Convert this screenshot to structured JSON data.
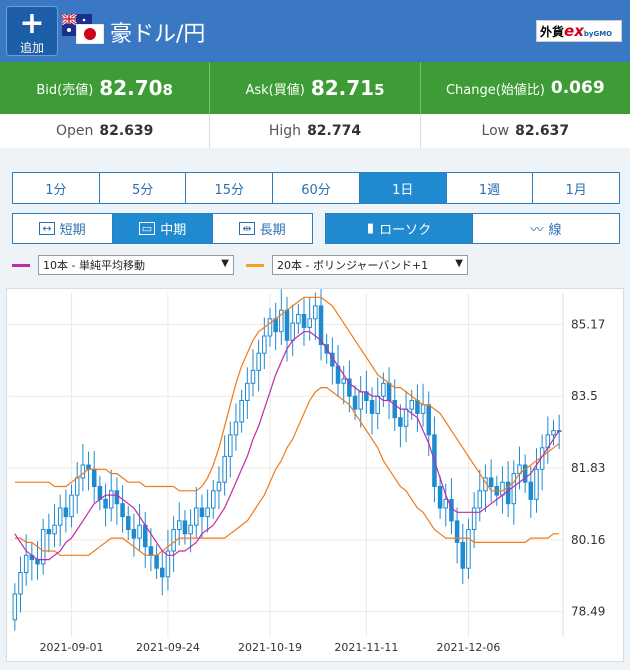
{
  "header": {
    "add_label": "追加",
    "title": "豪ドル/円",
    "logo_main": "外貨",
    "logo_ex": "ex",
    "logo_sub": "byGMO"
  },
  "rates": {
    "bid_label": "Bid(売値)",
    "bid_main": "82.70",
    "bid_pip": "8",
    "ask_label": "Ask(買値)",
    "ask_main": "82.71",
    "ask_pip": "5",
    "change_label": "Change(始値比)",
    "change_value": "0.069"
  },
  "ohl": {
    "open_label": "Open",
    "open_value": "82.639",
    "high_label": "High",
    "high_value": "82.774",
    "low_label": "Low",
    "low_value": "82.637"
  },
  "periods": [
    "1分",
    "5分",
    "15分",
    "60分",
    "1日",
    "1週",
    "1月"
  ],
  "active_period": "1日",
  "terms": [
    {
      "icon": "↔",
      "label": "短期"
    },
    {
      "icon": "▭",
      "label": "中期"
    },
    {
      "icon": "⇹",
      "label": "長期"
    }
  ],
  "chart_types": [
    {
      "icon": "▮",
      "label": "ローソク"
    },
    {
      "icon": "〰",
      "label": "線"
    }
  ],
  "indicators": {
    "ma_option": "10本 - 単純平均移動",
    "ma_color": "#c02aa8",
    "bb_option": "20本 - ボリンジャーバンド+1",
    "bb_color": "#f5a21b"
  },
  "chart_data": {
    "type": "candlestick",
    "y_ticks": [
      "85.17",
      "83.5",
      "81.83",
      "80.16",
      "78.49"
    ],
    "ylim": [
      77.9,
      85.9
    ],
    "x_ticks": [
      "2021-09-01",
      "2021-09-24",
      "2021-10-19",
      "2021-11-11",
      "2021-12-06"
    ],
    "x_tick_index": [
      10,
      27,
      45,
      62,
      80
    ],
    "candle_color": "#1f8ad0",
    "ma_color": "#c02aa8",
    "band_color": "#f07a1a",
    "closes": [
      78.9,
      79.4,
      79.8,
      79.7,
      79.6,
      80.4,
      80.3,
      80.5,
      80.9,
      80.7,
      81.2,
      81.6,
      81.9,
      81.8,
      81.4,
      81.1,
      80.9,
      81.3,
      81.0,
      80.7,
      80.4,
      80.2,
      80.5,
      80.0,
      79.8,
      79.5,
      79.3,
      79.9,
      80.4,
      80.6,
      80.3,
      80.5,
      80.9,
      80.7,
      80.9,
      81.3,
      81.5,
      82.1,
      82.6,
      82.9,
      83.4,
      83.8,
      84.1,
      84.5,
      84.9,
      85.3,
      85.0,
      85.5,
      84.8,
      85.2,
      85.4,
      85.1,
      85.3,
      85.6,
      84.7,
      84.5,
      84.2,
      83.8,
      83.9,
      83.5,
      83.2,
      83.6,
      83.4,
      83.1,
      83.5,
      83.8,
      83.4,
      83.0,
      82.8,
      83.2,
      83.4,
      83.1,
      83.3,
      82.6,
      81.4,
      80.9,
      81.1,
      80.6,
      80.1,
      79.5,
      80.4,
      80.9,
      81.3,
      81.6,
      81.4,
      81.2,
      81.5,
      81.0,
      81.7,
      81.9,
      81.5,
      81.1,
      81.8,
      82.3,
      82.6,
      82.7,
      82.7
    ],
    "ma10": [
      80.3,
      80.1,
      79.9,
      79.8,
      79.7,
      79.7,
      79.7,
      79.8,
      79.9,
      80.1,
      80.2,
      80.4,
      80.6,
      80.8,
      81.0,
      81.1,
      81.2,
      81.2,
      81.2,
      81.1,
      81.0,
      80.9,
      80.7,
      80.5,
      80.3,
      80.1,
      79.9,
      79.8,
      79.8,
      79.9,
      79.9,
      80.0,
      80.1,
      80.3,
      80.4,
      80.5,
      80.7,
      80.9,
      81.2,
      81.5,
      81.8,
      82.1,
      82.5,
      82.8,
      83.2,
      83.6,
      84.0,
      84.3,
      84.6,
      84.8,
      84.9,
      85.0,
      85.0,
      84.9,
      84.8,
      84.6,
      84.4,
      84.2,
      84.0,
      83.8,
      83.7,
      83.6,
      83.6,
      83.5,
      83.5,
      83.4,
      83.4,
      83.3,
      83.2,
      83.2,
      83.1,
      83.0,
      82.7,
      82.4,
      82.0,
      81.6,
      81.2,
      80.9,
      80.8,
      80.8,
      80.8,
      80.8,
      80.8,
      80.9,
      81.0,
      81.1,
      81.2,
      81.3,
      81.4,
      81.5,
      81.6,
      81.7,
      81.9,
      82.1,
      82.3,
      82.5,
      82.7
    ],
    "bb_upper": [
      81.5,
      81.5,
      81.5,
      81.5,
      81.5,
      81.5,
      81.5,
      81.4,
      81.4,
      81.4,
      81.5,
      81.6,
      81.7,
      81.8,
      81.8,
      81.8,
      81.8,
      81.7,
      81.7,
      81.6,
      81.5,
      81.5,
      81.5,
      81.4,
      81.4,
      81.4,
      81.4,
      81.4,
      81.4,
      81.3,
      81.3,
      81.3,
      81.3,
      81.4,
      81.6,
      81.9,
      82.3,
      82.8,
      83.3,
      83.8,
      84.2,
      84.5,
      84.8,
      85.0,
      85.1,
      85.2,
      85.3,
      85.4,
      85.5,
      85.6,
      85.7,
      85.8,
      85.8,
      85.8,
      85.8,
      85.7,
      85.6,
      85.4,
      85.2,
      85.0,
      84.8,
      84.6,
      84.4,
      84.2,
      84.0,
      83.9,
      83.8,
      83.7,
      83.7,
      83.6,
      83.5,
      83.4,
      83.3,
      83.3,
      83.2,
      83.1,
      82.9,
      82.7,
      82.5,
      82.3,
      82.1,
      81.9,
      81.7,
      81.5,
      81.3,
      81.3,
      81.3,
      81.4,
      81.5,
      81.7,
      81.8,
      81.9,
      82.0,
      82.1,
      82.2,
      82.3,
      82.4
    ],
    "bb_lower": [
      80.2,
      80.2,
      80.1,
      80.1,
      80.0,
      79.9,
      79.9,
      79.9,
      79.8,
      79.8,
      79.8,
      79.8,
      79.8,
      79.8,
      79.9,
      80.0,
      80.1,
      80.2,
      80.2,
      80.2,
      80.1,
      80.0,
      79.9,
      79.8,
      79.8,
      79.8,
      79.9,
      80.0,
      80.1,
      80.2,
      80.2,
      80.2,
      80.2,
      80.2,
      80.2,
      80.2,
      80.2,
      80.2,
      80.3,
      80.4,
      80.5,
      80.6,
      80.8,
      81.0,
      81.2,
      81.5,
      81.8,
      82.0,
      82.3,
      82.5,
      82.8,
      83.1,
      83.4,
      83.6,
      83.7,
      83.7,
      83.6,
      83.5,
      83.4,
      83.3,
      83.1,
      82.9,
      82.7,
      82.5,
      82.3,
      82.0,
      81.8,
      81.6,
      81.4,
      81.3,
      81.1,
      80.9,
      80.8,
      80.6,
      80.4,
      80.3,
      80.2,
      80.2,
      80.2,
      80.2,
      80.2,
      80.1,
      80.1,
      80.1,
      80.1,
      80.1,
      80.1,
      80.1,
      80.1,
      80.1,
      80.1,
      80.2,
      80.2,
      80.2,
      80.2,
      80.3,
      80.3
    ]
  }
}
